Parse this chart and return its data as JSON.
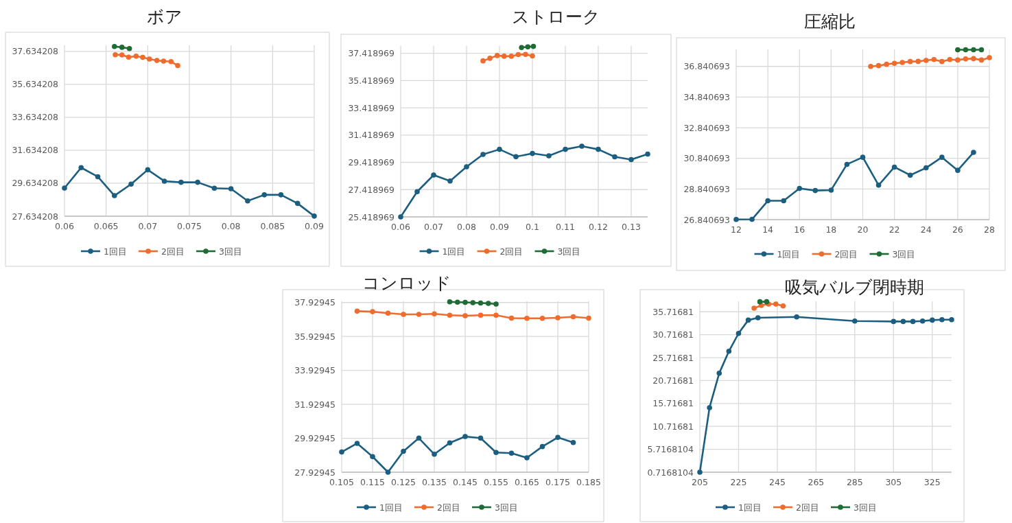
{
  "chart_data": [
    {
      "type": "line",
      "title": "ボア",
      "xlim": [
        0.06,
        0.09
      ],
      "xticks": [
        0.06,
        0.065,
        0.07,
        0.075,
        0.08,
        0.085,
        0.09
      ],
      "ylim": [
        27.634208,
        38
      ],
      "yticks": [
        27.634208,
        29.634208,
        31.634208,
        33.634208,
        35.634208,
        37.634208
      ],
      "grid": true,
      "legend": "bottom",
      "marker": "circle",
      "series": [
        {
          "name": "1回目",
          "color": "#1b5e80",
          "x": [
            0.06,
            0.062,
            0.064,
            0.066,
            0.068,
            0.07,
            0.072,
            0.074,
            0.076,
            0.078,
            0.08,
            0.082,
            0.084,
            0.086,
            0.088,
            0.09
          ],
          "values": [
            29.34,
            30.58,
            30.03,
            28.88,
            29.58,
            30.45,
            29.76,
            29.69,
            29.69,
            29.33,
            29.3,
            28.56,
            28.93,
            28.93,
            28.41,
            27.64
          ]
        },
        {
          "name": "2回目",
          "color": "#ee6c2d",
          "x": [
            0.0661,
            0.0669,
            0.0677,
            0.0686,
            0.0694,
            0.0702,
            0.0711,
            0.0719,
            0.0728,
            0.0736
          ],
          "values": [
            37.43,
            37.42,
            37.28,
            37.34,
            37.27,
            37.17,
            37.08,
            37.04,
            37.01,
            36.77
          ]
        },
        {
          "name": "3回目",
          "color": "#1e6b35",
          "x": [
            0.066,
            0.0669,
            0.0678
          ],
          "values": [
            37.93,
            37.88,
            37.8
          ]
        }
      ]
    },
    {
      "type": "line",
      "title": "ストローク",
      "xlim": [
        0.06,
        0.135
      ],
      "xticks": [
        0.06,
        0.07,
        0.08,
        0.09,
        0.1,
        0.11,
        0.12,
        0.13
      ],
      "ylim": [
        25.418969,
        37.95
      ],
      "yticks": [
        25.418969,
        27.418969,
        29.418969,
        31.418969,
        33.418969,
        35.418969,
        37.418969
      ],
      "grid": true,
      "legend": "bottom",
      "marker": "circle",
      "series": [
        {
          "name": "1回目",
          "color": "#1b5e80",
          "x": [
            0.06,
            0.065,
            0.07,
            0.075,
            0.08,
            0.085,
            0.09,
            0.095,
            0.1,
            0.105,
            0.11,
            0.115,
            0.12,
            0.125,
            0.13,
            0.135
          ],
          "values": [
            25.42,
            27.27,
            28.49,
            28.05,
            29.09,
            30.0,
            30.37,
            29.83,
            30.07,
            29.9,
            30.37,
            30.6,
            30.37,
            29.82,
            29.62,
            30.02
          ]
        },
        {
          "name": "2回目",
          "color": "#ee6c2d",
          "x": [
            0.085,
            0.0871,
            0.0893,
            0.0914,
            0.0936,
            0.0957,
            0.0979,
            0.1
          ],
          "values": [
            36.86,
            37.05,
            37.25,
            37.2,
            37.2,
            37.32,
            37.33,
            37.22
          ]
        },
        {
          "name": "3回目",
          "color": "#1e6b35",
          "x": [
            0.0967,
            0.0986,
            0.1003
          ],
          "values": [
            37.84,
            37.89,
            37.92
          ]
        }
      ]
    },
    {
      "type": "line",
      "title": "圧縮比",
      "xlim": [
        12,
        28
      ],
      "xticks": [
        12,
        14,
        16,
        18,
        20,
        22,
        24,
        26,
        28
      ],
      "ylim": [
        26.840693,
        37.95
      ],
      "yticks": [
        26.840693,
        28.840693,
        30.840693,
        32.840693,
        34.840693,
        36.840693
      ],
      "grid": true,
      "legend": "bottom",
      "marker": "circle",
      "series": [
        {
          "name": "1回目",
          "color": "#1b5e80",
          "x": [
            12,
            13,
            14,
            15,
            16,
            17,
            18,
            19,
            20,
            21,
            22,
            23,
            24,
            25,
            26,
            27
          ],
          "values": [
            26.85,
            26.86,
            28.07,
            28.07,
            28.88,
            28.74,
            28.77,
            30.45,
            30.91,
            29.09,
            30.27,
            29.74,
            30.22,
            30.91,
            30.06,
            31.23
          ]
        },
        {
          "name": "2回目",
          "color": "#ee6c2d",
          "x": [
            20.5,
            21,
            21.5,
            22,
            22.5,
            23,
            23.5,
            24,
            24.5,
            25,
            25.5,
            26,
            26.5,
            27,
            27.5,
            28
          ],
          "values": [
            36.84,
            36.89,
            36.98,
            37.04,
            37.1,
            37.16,
            37.17,
            37.23,
            37.29,
            37.16,
            37.29,
            37.26,
            37.33,
            37.35,
            37.26,
            37.41
          ]
        },
        {
          "name": "3回目",
          "color": "#1e6b35",
          "x": [
            26,
            26.5,
            27,
            27.5
          ],
          "values": [
            37.93,
            37.93,
            37.93,
            37.93
          ]
        }
      ]
    },
    {
      "type": "line",
      "title": "コンロッド",
      "xlim": [
        0.105,
        0.185
      ],
      "xticks": [
        0.105,
        0.115,
        0.125,
        0.135,
        0.145,
        0.155,
        0.165,
        0.175,
        0.185
      ],
      "ylim": [
        27.92945,
        38
      ],
      "yticks": [
        27.92945,
        29.92945,
        31.92945,
        33.92945,
        35.92945,
        37.92945
      ],
      "grid": true,
      "legend": "bottom",
      "marker": "circle",
      "series": [
        {
          "name": "1回目",
          "color": "#1b5e80",
          "x": [
            0.105,
            0.11,
            0.115,
            0.12,
            0.125,
            0.13,
            0.135,
            0.14,
            0.145,
            0.15,
            0.155,
            0.16,
            0.165,
            0.17,
            0.175,
            0.18
          ],
          "values": [
            29.12,
            29.63,
            28.85,
            27.93,
            29.16,
            29.94,
            28.99,
            29.66,
            30.03,
            29.94,
            29.09,
            29.05,
            28.78,
            29.44,
            29.98,
            29.68
          ]
        },
        {
          "name": "2回目",
          "color": "#ee6c2d",
          "x": [
            0.11,
            0.115,
            0.12,
            0.125,
            0.13,
            0.135,
            0.14,
            0.145,
            0.15,
            0.155,
            0.16,
            0.165,
            0.17,
            0.175,
            0.18,
            0.185
          ],
          "values": [
            37.42,
            37.39,
            37.3,
            37.23,
            37.23,
            37.26,
            37.18,
            37.15,
            37.18,
            37.18,
            37.01,
            37.0,
            37.0,
            37.03,
            37.09,
            37.01
          ]
        },
        {
          "name": "3回目",
          "color": "#1e6b35",
          "x": [
            0.14,
            0.1425,
            0.145,
            0.1475,
            0.15,
            0.1525,
            0.155
          ],
          "values": [
            37.97,
            37.95,
            37.94,
            37.92,
            37.9,
            37.88,
            37.84
          ]
        }
      ]
    },
    {
      "type": "line",
      "title": "吸気バルブ閉時期",
      "xlim": [
        205,
        335
      ],
      "xticks": [
        205,
        225,
        245,
        265,
        285,
        305,
        325
      ],
      "ylim": [
        0.7168104,
        38
      ],
      "yticks": [
        0.7168104,
        5.7168104,
        10.71681,
        15.71681,
        20.71681,
        25.71681,
        30.71681,
        35.71681
      ],
      "grid": true,
      "legend": "bottom",
      "marker": "circle",
      "series": [
        {
          "name": "1回目",
          "color": "#1b5e80",
          "x": [
            205,
            210,
            215,
            220,
            225,
            230,
            235,
            255,
            285,
            305,
            310,
            315,
            320,
            325,
            330,
            335
          ],
          "values": [
            0.72,
            14.8,
            22.3,
            27.1,
            31.0,
            33.9,
            34.4,
            34.6,
            33.7,
            33.6,
            33.6,
            33.6,
            33.7,
            33.9,
            34.0,
            34.0
          ]
        },
        {
          "name": "2回目",
          "color": "#ee6c2d",
          "x": [
            233,
            236.75,
            240.5,
            244.25,
            248
          ],
          "values": [
            36.5,
            37.1,
            37.4,
            37.4,
            37.0
          ]
        },
        {
          "name": "3回目",
          "color": "#1e6b35",
          "x": [
            236,
            239.5
          ],
          "values": [
            37.9,
            37.9
          ]
        }
      ]
    }
  ]
}
